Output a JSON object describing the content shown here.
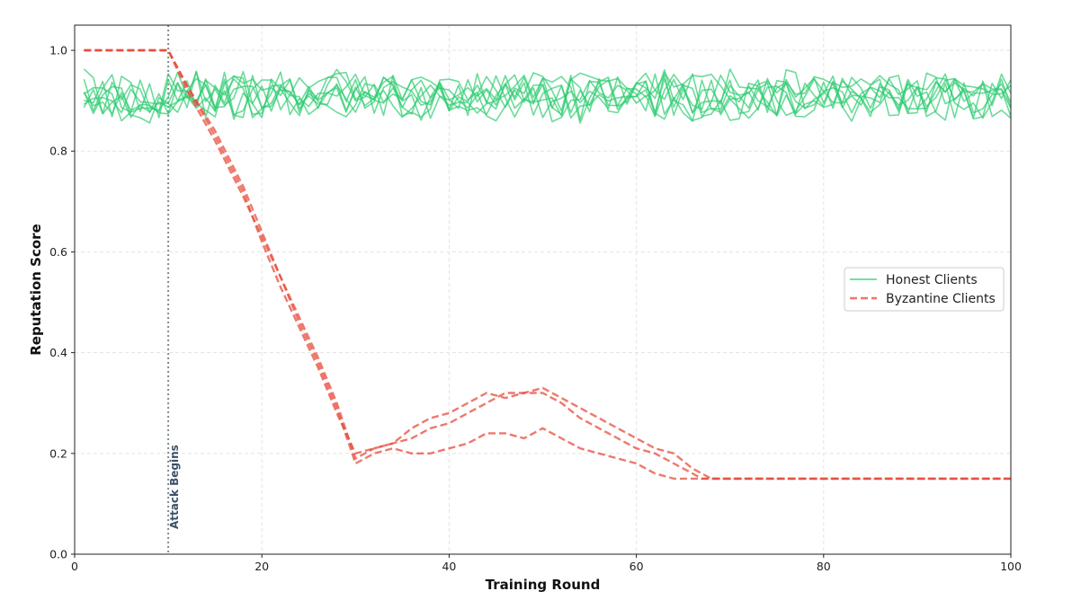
{
  "chart_data": {
    "type": "line",
    "title": "",
    "xlabel": "Training Round",
    "ylabel": "Reputation Score",
    "xlim": [
      0,
      100
    ],
    "ylim": [
      0.0,
      1.05
    ],
    "xticks": [
      0,
      20,
      40,
      60,
      80,
      100
    ],
    "yticks": [
      0.0,
      0.2,
      0.4,
      0.6,
      0.8,
      1.0
    ],
    "xtick_labels": [
      "0",
      "20",
      "40",
      "60",
      "80",
      "100"
    ],
    "ytick_labels": [
      "0.0",
      "0.2",
      "0.4",
      "0.6",
      "0.8",
      "1.0"
    ],
    "grid": true,
    "legend": {
      "position": "center-right",
      "entries": [
        {
          "label": "Honest Clients",
          "style": "solid",
          "color": "#2ecc71"
        },
        {
          "label": "Byzantine Clients",
          "style": "dashed",
          "color": "#e74c3c"
        }
      ]
    },
    "annotation": {
      "x": 10,
      "text": "Attack Begins",
      "color": "#34495e"
    },
    "honest_clients": {
      "count": 8,
      "x_start": 1,
      "x_end": 100,
      "mean": 0.91,
      "range": [
        0.85,
        0.99
      ],
      "color": "#2ecc71",
      "label": "Honest Clients"
    },
    "series": [
      {
        "name": "Byzantine 1",
        "color": "#e74c3c",
        "style": "dashed",
        "points": [
          [
            1,
            1.0
          ],
          [
            10,
            1.0
          ],
          [
            12,
            0.93
          ],
          [
            15,
            0.83
          ],
          [
            18,
            0.72
          ],
          [
            20,
            0.62
          ],
          [
            22,
            0.53
          ],
          [
            24,
            0.45
          ],
          [
            26,
            0.37
          ],
          [
            28,
            0.28
          ],
          [
            30,
            0.2
          ],
          [
            32,
            0.21
          ],
          [
            34,
            0.22
          ],
          [
            36,
            0.25
          ],
          [
            38,
            0.27
          ],
          [
            40,
            0.28
          ],
          [
            42,
            0.3
          ],
          [
            44,
            0.32
          ],
          [
            46,
            0.31
          ],
          [
            48,
            0.32
          ],
          [
            50,
            0.33
          ],
          [
            52,
            0.31
          ],
          [
            54,
            0.29
          ],
          [
            56,
            0.27
          ],
          [
            58,
            0.25
          ],
          [
            60,
            0.23
          ],
          [
            62,
            0.21
          ],
          [
            64,
            0.2
          ],
          [
            66,
            0.17
          ],
          [
            68,
            0.15
          ],
          [
            100,
            0.15
          ]
        ]
      },
      {
        "name": "Byzantine 2",
        "color": "#e74c3c",
        "style": "dashed",
        "points": [
          [
            1,
            1.0
          ],
          [
            10,
            1.0
          ],
          [
            12,
            0.92
          ],
          [
            15,
            0.82
          ],
          [
            18,
            0.71
          ],
          [
            20,
            0.63
          ],
          [
            22,
            0.55
          ],
          [
            24,
            0.47
          ],
          [
            26,
            0.39
          ],
          [
            28,
            0.3
          ],
          [
            30,
            0.19
          ],
          [
            32,
            0.21
          ],
          [
            34,
            0.22
          ],
          [
            36,
            0.23
          ],
          [
            38,
            0.25
          ],
          [
            40,
            0.26
          ],
          [
            42,
            0.28
          ],
          [
            44,
            0.3
          ],
          [
            46,
            0.32
          ],
          [
            48,
            0.32
          ],
          [
            50,
            0.32
          ],
          [
            52,
            0.3
          ],
          [
            54,
            0.27
          ],
          [
            56,
            0.25
          ],
          [
            58,
            0.23
          ],
          [
            60,
            0.21
          ],
          [
            62,
            0.2
          ],
          [
            64,
            0.18
          ],
          [
            66,
            0.16
          ],
          [
            67,
            0.15
          ],
          [
            100,
            0.15
          ]
        ]
      },
      {
        "name": "Byzantine 3",
        "color": "#e74c3c",
        "style": "dashed",
        "points": [
          [
            1,
            1.0
          ],
          [
            10,
            1.0
          ],
          [
            12,
            0.93
          ],
          [
            15,
            0.84
          ],
          [
            18,
            0.73
          ],
          [
            20,
            0.64
          ],
          [
            22,
            0.55
          ],
          [
            24,
            0.46
          ],
          [
            26,
            0.38
          ],
          [
            28,
            0.29
          ],
          [
            30,
            0.18
          ],
          [
            32,
            0.2
          ],
          [
            34,
            0.21
          ],
          [
            36,
            0.2
          ],
          [
            38,
            0.2
          ],
          [
            40,
            0.21
          ],
          [
            42,
            0.22
          ],
          [
            44,
            0.24
          ],
          [
            46,
            0.24
          ],
          [
            48,
            0.23
          ],
          [
            50,
            0.25
          ],
          [
            52,
            0.23
          ],
          [
            54,
            0.21
          ],
          [
            56,
            0.2
          ],
          [
            58,
            0.19
          ],
          [
            60,
            0.18
          ],
          [
            62,
            0.16
          ],
          [
            64,
            0.15
          ],
          [
            100,
            0.15
          ]
        ]
      }
    ]
  }
}
